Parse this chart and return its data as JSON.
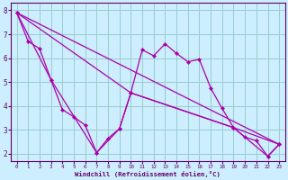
{
  "xlabel": "Windchill (Refroidissement éolien,°C)",
  "background_color": "#cceeff",
  "grid_color": "#99cccc",
  "line_color": "#aa00aa",
  "xlim": [
    -0.5,
    23.5
  ],
  "ylim": [
    1.7,
    8.3
  ],
  "xticks": [
    0,
    1,
    2,
    3,
    4,
    5,
    6,
    7,
    8,
    9,
    10,
    11,
    12,
    13,
    14,
    15,
    16,
    17,
    18,
    19,
    20,
    21,
    22,
    23
  ],
  "yticks": [
    2,
    3,
    4,
    5,
    6,
    7,
    8
  ],
  "series": {
    "main": {
      "x": [
        0,
        1,
        2,
        3,
        4,
        5,
        6,
        7,
        8,
        9,
        10,
        11,
        12,
        13,
        14,
        15,
        16,
        17,
        18,
        19,
        20,
        21,
        22,
        23
      ],
      "y": [
        7.9,
        6.7,
        6.4,
        5.1,
        3.85,
        3.55,
        3.2,
        2.05,
        2.65,
        3.05,
        4.55,
        6.35,
        6.1,
        6.6,
        6.2,
        5.85,
        5.95,
        4.75,
        3.9,
        3.1,
        2.7,
        2.55,
        1.9,
        2.4
      ]
    },
    "line2": {
      "x": [
        0,
        3,
        7,
        9,
        10,
        19,
        22,
        23
      ],
      "y": [
        7.9,
        5.1,
        2.05,
        3.05,
        4.55,
        3.1,
        1.9,
        2.4
      ]
    },
    "line3": {
      "x": [
        0,
        10,
        19,
        23
      ],
      "y": [
        7.9,
        4.55,
        3.1,
        2.4
      ]
    },
    "line4": {
      "x": [
        0,
        23
      ],
      "y": [
        7.9,
        2.4
      ]
    }
  }
}
